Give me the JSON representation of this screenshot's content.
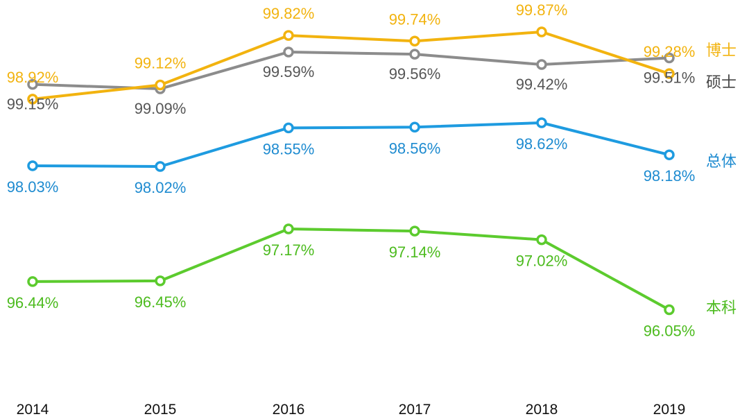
{
  "chart_data": {
    "type": "line",
    "categories": [
      "2014",
      "2015",
      "2016",
      "2017",
      "2018",
      "2019"
    ],
    "series": [
      {
        "name": "博士",
        "color": "#F2B30F",
        "values": [
          98.92,
          99.12,
          99.82,
          99.74,
          99.87,
          99.28
        ]
      },
      {
        "name": "硕士",
        "color": "#8C8C8C",
        "values": [
          99.15,
          99.09,
          99.59,
          99.56,
          99.42,
          99.51
        ]
      },
      {
        "name": "总体",
        "color": "#1E9BE0",
        "values": [
          98.03,
          98.02,
          98.55,
          98.56,
          98.62,
          98.18
        ]
      },
      {
        "name": "本科",
        "color": "#5CCB2E",
        "values": [
          96.44,
          96.45,
          97.17,
          97.14,
          97.02,
          96.05
        ]
      }
    ],
    "label_colors": [
      "#F2B30F",
      "#555555",
      "#1E8BD0",
      "#4CBB1E"
    ],
    "value_suffix": "%",
    "grid": false,
    "legend": "right, inline at line ends"
  }
}
